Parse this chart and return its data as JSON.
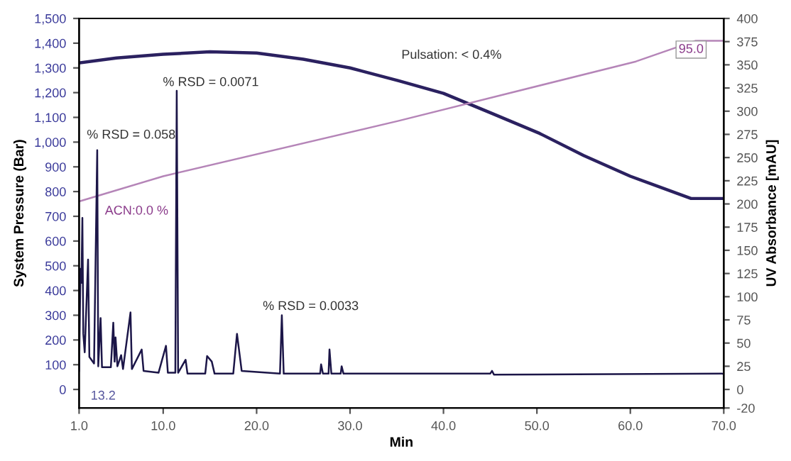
{
  "chart_data": {
    "type": "line",
    "xlabel": "Min",
    "ylabel": "System Pressure (Bar)",
    "y2label": "UV Absorbance [mAU]",
    "xlim": [
      1,
      70
    ],
    "xticks": [
      {
        "value": 1,
        "label": "1.0"
      },
      {
        "value": 10,
        "label": "10.0"
      },
      {
        "value": 20,
        "label": "20.0"
      },
      {
        "value": 30,
        "label": "30.0"
      },
      {
        "value": 40,
        "label": "40.0"
      },
      {
        "value": 50,
        "label": "50.0"
      },
      {
        "value": 60,
        "label": "60.0"
      },
      {
        "value": 70,
        "label": "70.0"
      }
    ],
    "ylim": [
      -75,
      1500
    ],
    "yticks": [
      0,
      100,
      200,
      300,
      400,
      500,
      600,
      700,
      800,
      900,
      {
        "value": 1000,
        "label": "1,000"
      },
      {
        "value": 1100,
        "label": "1,100"
      },
      {
        "value": 1200,
        "label": "1,200"
      },
      {
        "value": 1300,
        "label": "1,300"
      },
      {
        "value": 1400,
        "label": "1,400"
      },
      {
        "value": 1500,
        "label": "1,500"
      }
    ],
    "y2lim": [
      -20,
      400
    ],
    "y2ticks": [
      -20,
      0,
      25,
      50,
      75,
      100,
      125,
      150,
      175,
      200,
      225,
      250,
      275,
      300,
      325,
      350,
      375,
      400
    ],
    "grid": false,
    "marker": "none",
    "line_style": "solid",
    "series": [
      {
        "color": "#2b2160",
        "x": [
          1,
          5,
          10,
          15,
          20,
          25,
          30,
          35.2,
          40,
          45,
          50.3,
          55,
          60,
          66.5,
          70
        ],
        "values": [
          1320,
          1340,
          1355,
          1365,
          1360,
          1335,
          1300,
          1248,
          1197,
          1119,
          1035,
          946,
          862,
          772,
          772
        ]
      },
      {
        "color": "#b585b8",
        "x": [
          1,
          10,
          35.2,
          60.6,
          67,
          70
        ],
        "values": [
          760,
          862,
          1086,
          1326,
          1410,
          1410
        ]
      },
      {
        "color": "#1c1648",
        "axis": "y2",
        "x": [
          1.0,
          1.15,
          1.25,
          1.35,
          1.45,
          1.6,
          1.96,
          2.1,
          2.6,
          2.94,
          3.05,
          3.3,
          3.45,
          4.4,
          4.66,
          4.8,
          4.9,
          5.1,
          5.5,
          5.7,
          6.5,
          6.65,
          7.7,
          7.9,
          9.5,
          10.3,
          10.5,
          11.3,
          11.45,
          11.6,
          12.4,
          12.6,
          14.5,
          14.7,
          15.2,
          15.5,
          17.5,
          17.9,
          18.4,
          22.5,
          22.7,
          22.9,
          26.8,
          26.9,
          27.1,
          27.7,
          27.8,
          28,
          29,
          29.1,
          29.3,
          45,
          45.2,
          45.4,
          70
        ],
        "values": [
          20,
          130,
          115,
          185,
          60,
          40,
          140,
          35,
          28,
          258,
          25,
          77,
          24,
          24,
          72,
          30,
          56,
          25,
          37,
          22,
          83,
          22,
          43,
          20,
          18,
          47,
          18,
          18,
          322,
          18,
          32,
          17,
          17,
          36,
          30,
          17,
          17,
          60,
          20,
          17,
          80,
          17,
          17,
          27,
          17,
          17,
          43,
          17,
          17,
          25,
          17,
          17,
          20,
          16,
          17
        ]
      }
    ],
    "annotations": [
      "% RSD = 0.058",
      "% RSD = 0.0071",
      "% RSD = 0.0033",
      "Pulsation: < 0.4%",
      "ACN:0.0 %",
      "95.0",
      "13.2"
    ]
  }
}
